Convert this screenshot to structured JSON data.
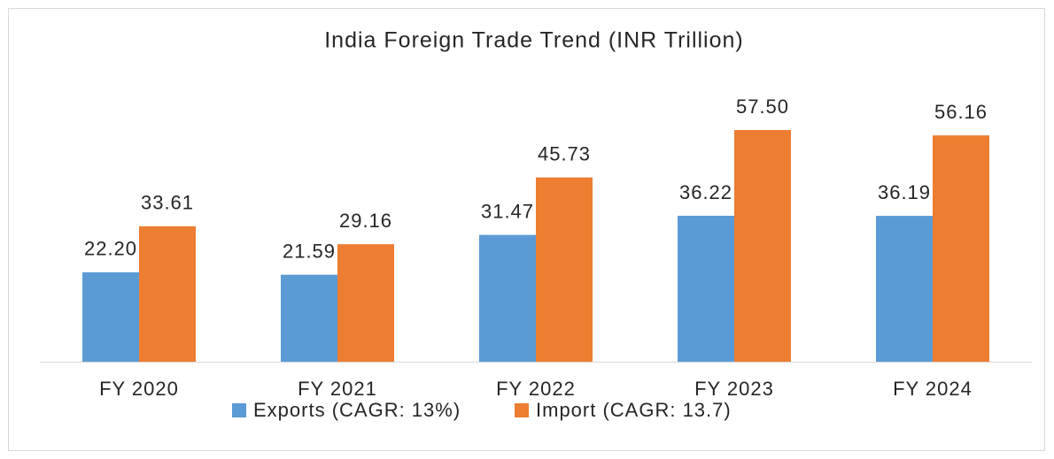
{
  "chart_data": {
    "type": "bar",
    "title": "India Foreign Trade Trend (INR Trillion)",
    "categories": [
      "FY 2020",
      "FY 2021",
      "FY 2022",
      "FY 2023",
      "FY 2024"
    ],
    "series": [
      {
        "name": "Exports (CAGR: 13%)",
        "color": "#5b9bd5",
        "values": [
          22.2,
          21.59,
          31.47,
          36.22,
          36.19
        ],
        "value_labels": [
          "22.20",
          "21.59",
          "31.47",
          "36.22",
          "36.19"
        ]
      },
      {
        "name": "Import (CAGR:  13.7)",
        "color": "#ed7d31",
        "values": [
          33.61,
          29.16,
          45.73,
          57.5,
          56.16
        ],
        "value_labels": [
          "33.61",
          "29.16",
          "45.73",
          "57.50",
          "56.16"
        ]
      }
    ],
    "legend": "bottom"
  }
}
